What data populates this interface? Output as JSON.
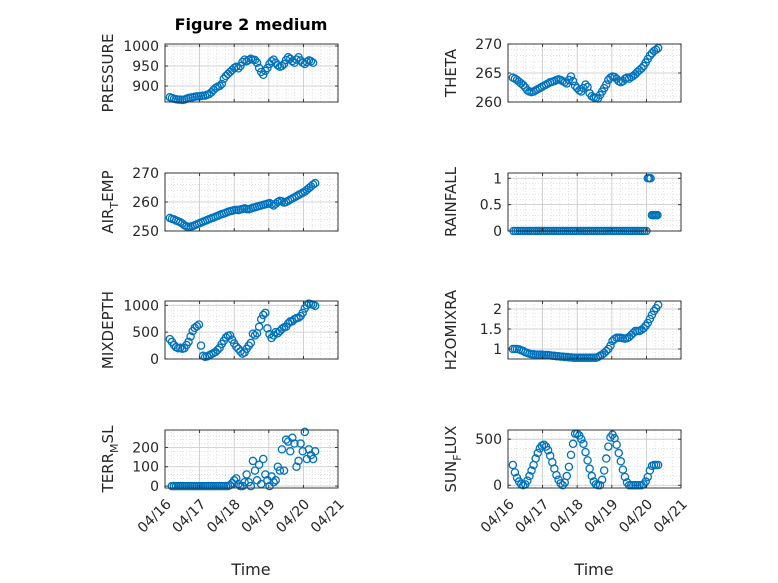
{
  "figure": {
    "title": "Figure 2 medium",
    "xlabel": "Time"
  },
  "marker_color": "#0072BD",
  "chart_data": [
    {
      "type": "scatter",
      "ylabel": "PRESSURE",
      "ylabel_sub": "",
      "ylim": [
        860,
        1005
      ],
      "yticks": [
        900,
        950,
        1000
      ],
      "yticklabels": [
        "900",
        "950",
        "1000"
      ],
      "xlim": [
        0,
        5
      ],
      "xticklabels": [],
      "grid": true,
      "x": [
        0.14,
        0.2,
        0.26,
        0.32,
        0.38,
        0.44,
        0.5,
        0.56,
        0.62,
        0.68,
        0.74,
        0.8,
        0.86,
        0.92,
        0.98,
        1.04,
        1.1,
        1.16,
        1.22,
        1.28,
        1.34,
        1.4,
        1.46,
        1.52,
        1.58,
        1.64,
        1.7,
        1.76,
        1.82,
        1.88,
        1.94,
        2.0,
        2.06,
        2.12,
        2.18,
        2.24,
        2.3,
        2.36,
        2.42,
        2.48,
        2.54,
        2.6,
        2.66,
        2.72,
        2.78,
        2.84,
        2.9,
        2.96,
        3.02,
        3.08,
        3.14,
        3.2,
        3.26,
        3.32,
        3.38,
        3.44,
        3.5,
        3.56,
        3.62,
        3.68,
        3.74,
        3.8,
        3.86,
        3.92,
        3.98,
        4.04,
        4.1,
        4.16,
        4.22,
        4.28
      ],
      "y": [
        872,
        870,
        868,
        867,
        866,
        866,
        865,
        866,
        868,
        870,
        871,
        872,
        873,
        874,
        874,
        875,
        876,
        876,
        878,
        880,
        884,
        890,
        895,
        898,
        900,
        905,
        918,
        925,
        930,
        935,
        940,
        945,
        948,
        944,
        950,
        960,
        966,
        962,
        965,
        968,
        966,
        965,
        958,
        945,
        935,
        928,
        938,
        945,
        955,
        962,
        966,
        958,
        952,
        948,
        950,
        955,
        965,
        972,
        968,
        962,
        958,
        966,
        972,
        964,
        958,
        955,
        960,
        964,
        962,
        958
      ]
    },
    {
      "type": "scatter",
      "ylabel": "THETA",
      "ylabel_sub": "",
      "ylim": [
        260,
        270
      ],
      "yticks": [
        260,
        265,
        270
      ],
      "yticklabels": [
        "260",
        "265",
        "270"
      ],
      "xlim": [
        0,
        5
      ],
      "xticklabels": [],
      "grid": true,
      "x": [
        0.14,
        0.2,
        0.26,
        0.32,
        0.38,
        0.44,
        0.5,
        0.56,
        0.62,
        0.68,
        0.74,
        0.8,
        0.86,
        0.92,
        0.98,
        1.04,
        1.1,
        1.16,
        1.22,
        1.28,
        1.34,
        1.4,
        1.46,
        1.52,
        1.58,
        1.64,
        1.7,
        1.76,
        1.82,
        1.88,
        1.94,
        2.0,
        2.06,
        2.12,
        2.18,
        2.24,
        2.3,
        2.36,
        2.42,
        2.48,
        2.54,
        2.6,
        2.66,
        2.72,
        2.78,
        2.84,
        2.9,
        2.96,
        3.02,
        3.08,
        3.14,
        3.2,
        3.26,
        3.32,
        3.38,
        3.44,
        3.5,
        3.56,
        3.62,
        3.68,
        3.74,
        3.8,
        3.86,
        3.92,
        3.98,
        4.04,
        4.1,
        4.16,
        4.22,
        4.28,
        4.34
      ],
      "y": [
        264.2,
        264.0,
        263.8,
        263.5,
        263.2,
        262.9,
        262.5,
        262.0,
        261.8,
        261.7,
        261.8,
        262.0,
        262.2,
        262.4,
        262.6,
        262.8,
        263.0,
        263.2,
        263.4,
        263.5,
        263.6,
        263.8,
        263.9,
        263.8,
        263.6,
        263.4,
        263.2,
        263.8,
        264.4,
        263.6,
        262.8,
        262.4,
        262.0,
        261.8,
        262.4,
        263.0,
        262.6,
        261.5,
        261.0,
        260.8,
        260.7,
        260.6,
        261.2,
        261.8,
        262.4,
        263.0,
        263.8,
        264.2,
        264.4,
        264.3,
        264.0,
        263.6,
        263.4,
        263.6,
        264.0,
        264.2,
        264.0,
        264.3,
        264.5,
        264.8,
        265.2,
        265.5,
        265.8,
        266.2,
        266.8,
        267.4,
        268.0,
        268.4,
        268.8,
        269.0,
        269.3
      ]
    },
    {
      "type": "scatter",
      "ylabel": "AIR",
      "ylabel_sub": "T",
      "ylabel_rest": "EMP",
      "ylim": [
        250,
        270
      ],
      "yticks": [
        250,
        260,
        270
      ],
      "yticklabels": [
        "250",
        "260",
        "270"
      ],
      "xlim": [
        0,
        5
      ],
      "xticklabels": [],
      "grid": true,
      "x": [
        0.14,
        0.2,
        0.26,
        0.32,
        0.38,
        0.44,
        0.5,
        0.56,
        0.62,
        0.68,
        0.74,
        0.8,
        0.86,
        0.92,
        0.98,
        1.04,
        1.1,
        1.16,
        1.22,
        1.28,
        1.34,
        1.4,
        1.46,
        1.52,
        1.58,
        1.64,
        1.7,
        1.76,
        1.82,
        1.88,
        1.94,
        2.0,
        2.06,
        2.12,
        2.18,
        2.24,
        2.3,
        2.36,
        2.42,
        2.48,
        2.54,
        2.6,
        2.66,
        2.72,
        2.78,
        2.84,
        2.9,
        2.96,
        3.02,
        3.08,
        3.14,
        3.2,
        3.26,
        3.32,
        3.38,
        3.44,
        3.5,
        3.56,
        3.62,
        3.68,
        3.74,
        3.8,
        3.86,
        3.92,
        3.98,
        4.04,
        4.1,
        4.16,
        4.22,
        4.28,
        4.34
      ],
      "y": [
        254.5,
        254.2,
        254.0,
        253.6,
        253.3,
        253.0,
        252.6,
        252.0,
        251.6,
        251.4,
        251.5,
        251.7,
        252.0,
        252.3,
        252.6,
        252.9,
        253.2,
        253.5,
        253.8,
        254.1,
        254.4,
        254.6,
        254.9,
        255.2,
        255.5,
        255.8,
        256.0,
        256.3,
        256.6,
        256.8,
        257.0,
        257.2,
        257.3,
        257.2,
        257.4,
        257.6,
        257.8,
        257.6,
        257.5,
        257.7,
        258.0,
        258.2,
        258.4,
        258.6,
        258.8,
        259.0,
        259.2,
        259.4,
        259.6,
        259.2,
        258.8,
        259.4,
        260.0,
        260.4,
        260.2,
        259.8,
        260.0,
        260.4,
        260.8,
        261.2,
        261.6,
        262.0,
        262.4,
        262.8,
        263.2,
        263.6,
        264.2,
        264.8,
        265.4,
        266.0,
        266.5
      ]
    },
    {
      "type": "scatter",
      "ylabel": "RAINFALL",
      "ylabel_sub": "",
      "ylim": [
        0,
        1.1
      ],
      "yticks": [
        0,
        0.5,
        1
      ],
      "yticklabels": [
        "0",
        "0.5",
        "1"
      ],
      "xlim": [
        0,
        5
      ],
      "xticklabels": [],
      "grid": true,
      "x": [
        0.16,
        0.22,
        0.28,
        0.34,
        0.4,
        0.46,
        0.52,
        0.58,
        0.64,
        0.7,
        0.76,
        0.82,
        0.88,
        0.94,
        1.0,
        1.06,
        1.12,
        1.18,
        1.24,
        1.3,
        1.36,
        1.42,
        1.48,
        1.54,
        1.6,
        1.66,
        1.72,
        1.78,
        1.84,
        1.9,
        1.96,
        2.02,
        2.08,
        2.14,
        2.2,
        2.26,
        2.32,
        2.38,
        2.44,
        2.5,
        2.56,
        2.62,
        2.68,
        2.74,
        2.8,
        2.86,
        2.92,
        2.98,
        3.04,
        3.1,
        3.16,
        3.22,
        3.28,
        3.34,
        3.4,
        3.46,
        3.52,
        3.58,
        3.64,
        3.7,
        3.76,
        3.82,
        3.88,
        3.94,
        4.0,
        4.04,
        4.08,
        4.12,
        4.16,
        4.2,
        4.24,
        4.28,
        4.32
      ],
      "y": [
        0,
        0,
        0,
        0,
        0,
        0,
        0,
        0,
        0,
        0,
        0,
        0,
        0,
        0,
        0,
        0,
        0,
        0,
        0,
        0,
        0,
        0,
        0,
        0,
        0,
        0,
        0,
        0,
        0,
        0,
        0,
        0,
        0,
        0,
        0,
        0,
        0,
        0,
        0,
        0,
        0,
        0,
        0,
        0,
        0,
        0,
        0,
        0,
        0,
        0,
        0,
        0,
        0,
        0,
        0,
        0,
        0,
        0,
        0,
        0,
        0,
        0,
        0,
        0,
        0,
        1,
        1,
        1,
        0.3,
        0.3,
        0.3,
        0.3,
        0.3
      ]
    },
    {
      "type": "scatter",
      "ylabel": "MIXDEPTH",
      "ylabel_sub": "",
      "ylim": [
        0,
        1080
      ],
      "yticks": [
        0,
        500,
        1000
      ],
      "yticklabels": [
        "0",
        "500",
        "1000"
      ],
      "xlim": [
        0,
        5
      ],
      "xticklabels": [],
      "grid": true,
      "x": [
        0.14,
        0.2,
        0.26,
        0.32,
        0.38,
        0.44,
        0.5,
        0.56,
        0.62,
        0.68,
        0.74,
        0.8,
        0.86,
        0.92,
        0.98,
        1.04,
        1.1,
        1.16,
        1.22,
        1.28,
        1.34,
        1.4,
        1.46,
        1.52,
        1.58,
        1.64,
        1.7,
        1.76,
        1.82,
        1.88,
        1.94,
        2.0,
        2.06,
        2.12,
        2.18,
        2.24,
        2.3,
        2.36,
        2.42,
        2.48,
        2.54,
        2.6,
        2.66,
        2.72,
        2.78,
        2.84,
        2.9,
        2.96,
        3.02,
        3.08,
        3.14,
        3.2,
        3.26,
        3.32,
        3.38,
        3.44,
        3.5,
        3.56,
        3.62,
        3.68,
        3.74,
        3.8,
        3.86,
        3.92,
        3.98,
        4.04,
        4.1,
        4.16,
        4.22,
        4.28,
        4.34
      ],
      "y": [
        370,
        320,
        260,
        220,
        200,
        210,
        190,
        200,
        260,
        320,
        420,
        520,
        580,
        610,
        640,
        250,
        60,
        40,
        50,
        70,
        90,
        110,
        130,
        170,
        210,
        280,
        340,
        400,
        430,
        440,
        360,
        290,
        230,
        190,
        140,
        100,
        120,
        190,
        250,
        300,
        470,
        440,
        480,
        600,
        740,
        820,
        860,
        570,
        460,
        390,
        440,
        500,
        480,
        520,
        560,
        590,
        600,
        660,
        700,
        700,
        740,
        760,
        770,
        800,
        860,
        940,
        1000,
        1030,
        1020,
        1010,
        990
      ]
    },
    {
      "type": "scatter",
      "ylabel": "H2OMIXRA",
      "ylabel_sub": "",
      "ylim": [
        0.75,
        2.2
      ],
      "yticks": [
        1,
        1.5,
        2
      ],
      "yticklabels": [
        "1",
        "1.5",
        "2"
      ],
      "xlim": [
        0,
        5
      ],
      "xticklabels": [],
      "grid": true,
      "x": [
        0.14,
        0.2,
        0.26,
        0.32,
        0.38,
        0.44,
        0.5,
        0.56,
        0.62,
        0.68,
        0.74,
        0.8,
        0.86,
        0.92,
        0.98,
        1.04,
        1.1,
        1.16,
        1.22,
        1.28,
        1.34,
        1.4,
        1.46,
        1.52,
        1.58,
        1.64,
        1.7,
        1.76,
        1.82,
        1.88,
        1.94,
        2.0,
        2.06,
        2.12,
        2.18,
        2.24,
        2.3,
        2.36,
        2.42,
        2.48,
        2.54,
        2.6,
        2.66,
        2.72,
        2.78,
        2.84,
        2.9,
        2.96,
        3.02,
        3.08,
        3.14,
        3.2,
        3.26,
        3.32,
        3.38,
        3.44,
        3.5,
        3.56,
        3.62,
        3.68,
        3.74,
        3.8,
        3.86,
        3.92,
        3.98,
        4.04,
        4.1,
        4.16,
        4.22,
        4.28,
        4.34
      ],
      "y": [
        1.0,
        1.0,
        1.0,
        0.99,
        0.97,
        0.95,
        0.92,
        0.9,
        0.88,
        0.87,
        0.87,
        0.86,
        0.86,
        0.86,
        0.86,
        0.85,
        0.85,
        0.85,
        0.84,
        0.83,
        0.83,
        0.82,
        0.82,
        0.81,
        0.81,
        0.8,
        0.8,
        0.79,
        0.79,
        0.78,
        0.78,
        0.78,
        0.78,
        0.78,
        0.78,
        0.78,
        0.78,
        0.78,
        0.78,
        0.78,
        0.78,
        0.8,
        0.83,
        0.86,
        0.9,
        0.95,
        1.0,
        1.08,
        1.2,
        1.25,
        1.28,
        1.28,
        1.28,
        1.27,
        1.26,
        1.27,
        1.3,
        1.35,
        1.4,
        1.45,
        1.45,
        1.45,
        1.48,
        1.52,
        1.58,
        1.65,
        1.75,
        1.85,
        1.95,
        2.02,
        2.1
      ]
    },
    {
      "type": "scatter",
      "ylabel": "TERR",
      "ylabel_sub": "M",
      "ylabel_rest": "SL",
      "ylim": [
        -10,
        290
      ],
      "yticks": [
        0,
        100,
        200
      ],
      "yticklabels": [
        "0",
        "100",
        "200"
      ],
      "xlim": [
        0,
        5
      ],
      "xticklabels": [
        "04/16",
        "04/17",
        "04/18",
        "04/19",
        "04/20",
        "04/21"
      ],
      "grid": true,
      "x": [
        0.2,
        0.26,
        0.32,
        0.38,
        0.44,
        0.5,
        0.56,
        0.62,
        0.68,
        0.74,
        0.8,
        0.86,
        0.92,
        0.98,
        1.04,
        1.1,
        1.16,
        1.22,
        1.28,
        1.34,
        1.4,
        1.46,
        1.52,
        1.58,
        1.64,
        1.7,
        1.76,
        1.82,
        1.88,
        1.94,
        2.0,
        2.06,
        2.12,
        2.18,
        2.24,
        2.3,
        2.36,
        2.42,
        2.48,
        2.54,
        2.6,
        2.66,
        2.72,
        2.78,
        2.84,
        2.9,
        2.96,
        3.02,
        3.08,
        3.14,
        3.2,
        3.26,
        3.32,
        3.38,
        3.44,
        3.5,
        3.56,
        3.62,
        3.68,
        3.74,
        3.8,
        3.86,
        3.92,
        3.98,
        4.04,
        4.1,
        4.16,
        4.22,
        4.28,
        4.34
      ],
      "y": [
        0,
        0,
        0,
        0,
        0,
        0,
        0,
        0,
        0,
        0,
        0,
        0,
        0,
        0,
        0,
        0,
        0,
        0,
        0,
        0,
        0,
        0,
        0,
        0,
        0,
        0,
        0,
        0,
        5,
        15,
        30,
        40,
        10,
        0,
        0,
        20,
        60,
        20,
        0,
        130,
        80,
        30,
        110,
        10,
        140,
        60,
        30,
        0,
        50,
        20,
        30,
        100,
        80,
        190,
        80,
        240,
        230,
        180,
        250,
        220,
        100,
        130,
        220,
        180,
        280,
        140,
        190,
        160,
        140,
        180
      ]
    },
    {
      "type": "scatter",
      "ylabel": "SUN",
      "ylabel_sub": "F",
      "ylabel_rest": "LUX",
      "ylim": [
        -30,
        600
      ],
      "yticks": [
        0,
        500
      ],
      "yticklabels": [
        "0",
        "500"
      ],
      "xlim": [
        0,
        5
      ],
      "xticklabels": [
        "04/16",
        "04/17",
        "04/18",
        "04/19",
        "04/20",
        "04/21"
      ],
      "grid": true,
      "x": [
        0.14,
        0.2,
        0.26,
        0.32,
        0.38,
        0.44,
        0.5,
        0.56,
        0.62,
        0.68,
        0.74,
        0.8,
        0.86,
        0.92,
        0.98,
        1.04,
        1.1,
        1.16,
        1.22,
        1.28,
        1.34,
        1.4,
        1.46,
        1.52,
        1.58,
        1.64,
        1.7,
        1.76,
        1.82,
        1.88,
        1.94,
        2.0,
        2.06,
        2.12,
        2.18,
        2.24,
        2.3,
        2.36,
        2.42,
        2.48,
        2.54,
        2.6,
        2.66,
        2.72,
        2.78,
        2.84,
        2.9,
        2.96,
        3.02,
        3.08,
        3.14,
        3.2,
        3.26,
        3.32,
        3.38,
        3.44,
        3.5,
        3.56,
        3.62,
        3.68,
        3.74,
        3.8,
        3.86,
        3.92,
        3.98,
        4.04,
        4.1,
        4.16,
        4.22,
        4.28,
        4.34
      ],
      "y": [
        220,
        140,
        80,
        40,
        10,
        0,
        10,
        50,
        100,
        160,
        220,
        290,
        350,
        400,
        430,
        440,
        420,
        380,
        320,
        250,
        180,
        110,
        60,
        20,
        0,
        30,
        100,
        200,
        330,
        450,
        560,
        560,
        540,
        500,
        450,
        360,
        270,
        180,
        100,
        40,
        10,
        0,
        0,
        60,
        160,
        290,
        420,
        520,
        550,
        510,
        440,
        350,
        260,
        170,
        90,
        30,
        0,
        0,
        0,
        0,
        0,
        0,
        0,
        10,
        40,
        90,
        160,
        210,
        220,
        220,
        220
      ]
    }
  ]
}
